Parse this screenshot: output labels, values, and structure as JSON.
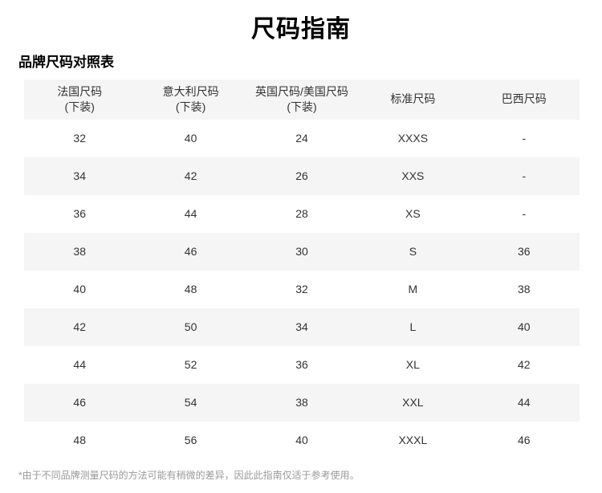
{
  "page": {
    "title": "尺码指南",
    "subtitle": "品牌尺码对照表",
    "footnote": "*由于不同品牌测量尺码的方法可能有稍微的差异，因此此指南仅适于参考使用。"
  },
  "colors": {
    "header_bg": "#f5f5f5",
    "row_alt_bg": "#f5f5f5",
    "text": "#333333",
    "footnote": "#999999"
  },
  "table": {
    "headers": [
      "法国尺码\n(下装)",
      "意大利尺码\n(下装)",
      "英国尺码/美国尺码\n(下装)",
      "标准尺码",
      "巴西尺码"
    ],
    "rows": [
      [
        "32",
        "40",
        "24",
        "XXXS",
        "-"
      ],
      [
        "34",
        "42",
        "26",
        "XXS",
        "-"
      ],
      [
        "36",
        "44",
        "28",
        "XS",
        "-"
      ],
      [
        "38",
        "46",
        "30",
        "S",
        "36"
      ],
      [
        "40",
        "48",
        "32",
        "M",
        "38"
      ],
      [
        "42",
        "50",
        "34",
        "L",
        "40"
      ],
      [
        "44",
        "52",
        "36",
        "XL",
        "42"
      ],
      [
        "46",
        "54",
        "38",
        "XXL",
        "44"
      ],
      [
        "48",
        "56",
        "40",
        "XXXL",
        "46"
      ]
    ]
  }
}
